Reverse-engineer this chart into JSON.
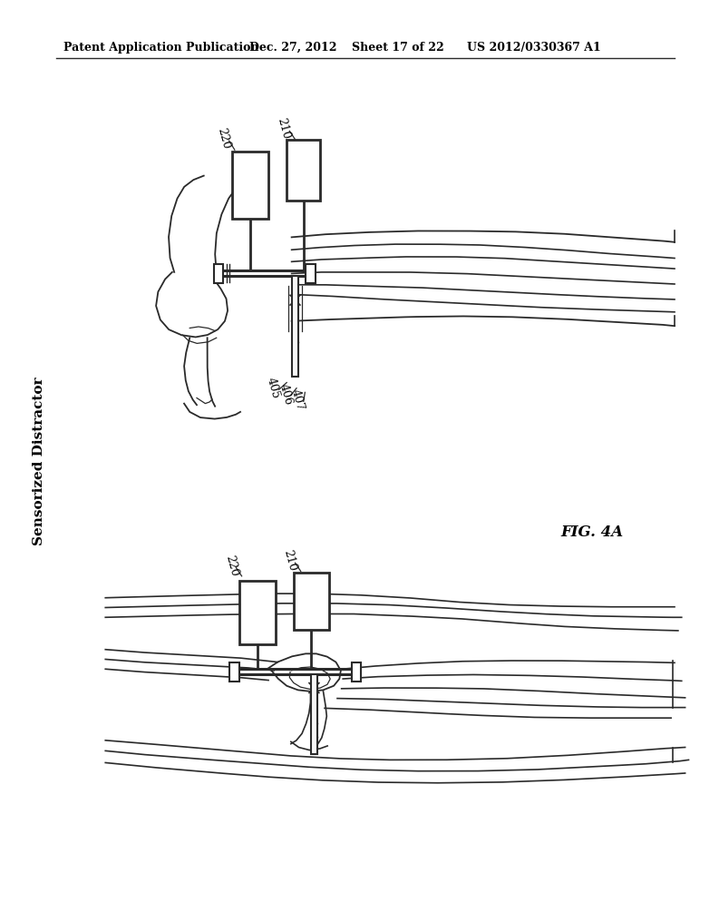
{
  "background_color": "#ffffff",
  "header_text": "Patent Application Publication",
  "header_date": "Dec. 27, 2012",
  "header_sheet": "Sheet 17 of 22",
  "header_patent": "US 2012/0330367 A1",
  "side_label": "Sensorized Distractor",
  "fig_label": "FIG. 4A",
  "line_color": "#2a2a2a",
  "label_220_top": "220",
  "label_210_top": "210",
  "label_405": "405",
  "label_406": "406",
  "label_407": "407",
  "label_220_bot": "220",
  "label_210_bot": "210"
}
